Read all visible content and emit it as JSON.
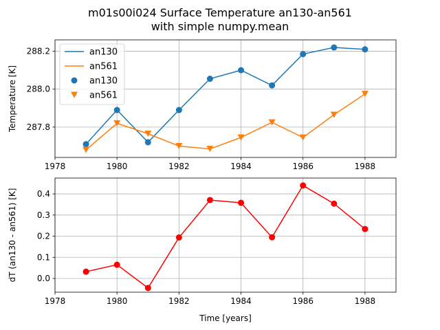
{
  "figure": {
    "title_line1": "m01s00i024 Surface Temperature an130-an561",
    "title_line2": "with simple numpy.mean"
  },
  "colors": {
    "an130": "#1f77b4",
    "an561": "#ff7f0e",
    "diff": "#ff0000",
    "grid": "#b0b0b0",
    "axes": "#000000"
  },
  "chart_data": [
    {
      "type": "line",
      "title": "",
      "xlabel": "",
      "ylabel": "Temperature [K]",
      "xlim": [
        1978,
        1989
      ],
      "ylim": [
        287.64,
        288.26
      ],
      "grid": true,
      "legend_position": "top-left",
      "xticks": [
        1978,
        1980,
        1982,
        1984,
        1986,
        1988
      ],
      "yticks": [
        287.8,
        288.0,
        288.2
      ],
      "ytick_labels": [
        "287.8",
        "288.0",
        "288.2"
      ],
      "x": [
        1979,
        1980,
        1981,
        1982,
        1983,
        1984,
        1985,
        1986,
        1987,
        1988
      ],
      "series": [
        {
          "name": "an130",
          "style": "line+circle",
          "values": [
            287.71,
            287.89,
            287.72,
            287.89,
            288.055,
            288.1,
            288.02,
            288.185,
            288.22,
            288.21
          ]
        },
        {
          "name": "an561",
          "style": "line+triangle-down",
          "values": [
            287.68,
            287.82,
            287.765,
            287.7,
            287.685,
            287.745,
            287.825,
            287.745,
            287.865,
            287.975
          ]
        }
      ],
      "legend": [
        "an130",
        "an561",
        "an130",
        "an561"
      ]
    },
    {
      "type": "line",
      "title": "",
      "xlabel": "Time [years]",
      "ylabel": "dT (an130 - an561) [K]",
      "xlim": [
        1978,
        1989
      ],
      "ylim": [
        -0.065,
        0.475
      ],
      "grid": true,
      "xticks": [
        1978,
        1980,
        1982,
        1984,
        1986,
        1988
      ],
      "yticks": [
        0.0,
        0.1,
        0.2,
        0.3,
        0.4
      ],
      "ytick_labels": [
        "0.0",
        "0.1",
        "0.2",
        "0.3",
        "0.4"
      ],
      "x": [
        1979,
        1980,
        1981,
        1982,
        1983,
        1984,
        1985,
        1986,
        1987,
        1988
      ],
      "series": [
        {
          "style": "line+circle",
          "values": [
            0.032,
            0.065,
            -0.045,
            0.194,
            0.371,
            0.358,
            0.195,
            0.44,
            0.354,
            0.234
          ]
        }
      ]
    }
  ]
}
